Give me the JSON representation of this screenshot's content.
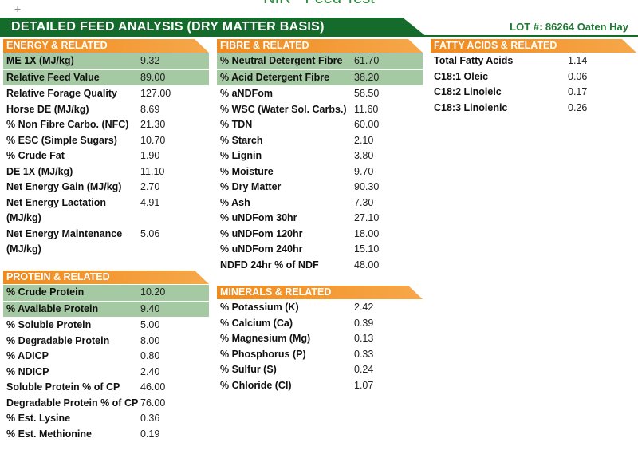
{
  "header": {
    "doc_title": "NIR - Feed Test",
    "plus": "+",
    "banner": "DETAILED FEED ANALYSIS (DRY MATTER BASIS)",
    "lot": "LOT #: 86264 Oaten Hay"
  },
  "sections": [
    {
      "title": "ENERGY & RELATED",
      "highlight": 2,
      "rows": [
        [
          "ME 1X (MJ/kg)",
          "9.32"
        ],
        [
          "Relative Feed Value",
          "89.00"
        ],
        [
          "Relative Forage Quality",
          "127.00"
        ],
        [
          "Horse DE (MJ/kg)",
          "8.69"
        ],
        [
          "% Non Fibre Carbo. (NFC)",
          "21.30"
        ],
        [
          "% ESC (Simple Sugars)",
          "10.70"
        ],
        [
          "% Crude Fat",
          "1.90"
        ],
        [
          "DE 1X (MJ/kg)",
          "11.10"
        ],
        [
          "Net Energy Gain (MJ/kg)",
          "2.70"
        ],
        [
          "Net Energy Lactation (MJ/kg)",
          "4.91"
        ],
        [
          "Net Energy Maintenance (MJ/kg)",
          "5.06"
        ]
      ]
    },
    {
      "title": "PROTEIN & RELATED",
      "highlight": 2,
      "rows": [
        [
          "% Crude Protein",
          "10.20"
        ],
        [
          "% Available Protein",
          "9.40"
        ],
        [
          "% Soluble Protein",
          "5.00"
        ],
        [
          "% Degradable Protein",
          "8.00"
        ],
        [
          "% ADICP",
          "0.80"
        ],
        [
          "% NDICP",
          "2.40"
        ],
        [
          "Soluble Protein % of CP",
          "46.00"
        ],
        [
          "Degradable Protein % of CP",
          "76.00"
        ],
        [
          "% Est. Lysine",
          "0.36"
        ],
        [
          "% Est. Methionine",
          "0.19"
        ]
      ]
    },
    {
      "title": "FIBRE & RELATED",
      "highlight": 2,
      "rows": [
        [
          "% Neutral Detergent Fibre",
          "61.70"
        ],
        [
          "% Acid Detergent Fibre",
          "38.20"
        ],
        [
          "% aNDFom",
          "58.50"
        ],
        [
          "% WSC (Water Sol. Carbs.)",
          "11.60"
        ],
        [
          "% TDN",
          "60.00"
        ],
        [
          "% Starch",
          "2.10"
        ],
        [
          "% Lignin",
          "3.80"
        ],
        [
          "% Moisture",
          "9.70"
        ],
        [
          "% Dry Matter",
          "90.30"
        ],
        [
          "% Ash",
          "7.30"
        ],
        [
          "% uNDFom 30hr",
          "27.10"
        ],
        [
          "% uNDFom 120hr",
          "18.00"
        ],
        [
          "% uNDFom 240hr",
          "15.10"
        ],
        [
          "NDFD 24hr % of NDF",
          "48.00"
        ]
      ]
    },
    {
      "title": "MINERALS & RELATED",
      "highlight": 0,
      "rows": [
        [
          "% Potassium (K)",
          "2.42"
        ],
        [
          "% Calcium (Ca)",
          "0.39"
        ],
        [
          "% Magnesium (Mg)",
          "0.13"
        ],
        [
          "% Phosphorus (P)",
          "0.33"
        ],
        [
          "% Sulfur (S)",
          "0.24"
        ],
        [
          "% Chloride (Cl)",
          "1.07"
        ]
      ]
    },
    {
      "title": "FATTY ACIDS & RELATED",
      "highlight": 0,
      "rows": [
        [
          "Total Fatty Acids",
          "1.14"
        ],
        [
          "C18:1 Oleic",
          "0.06"
        ],
        [
          "C18:2 Linoleic",
          "0.17"
        ],
        [
          "C18:3 Linolenic",
          "0.26"
        ]
      ]
    }
  ]
}
